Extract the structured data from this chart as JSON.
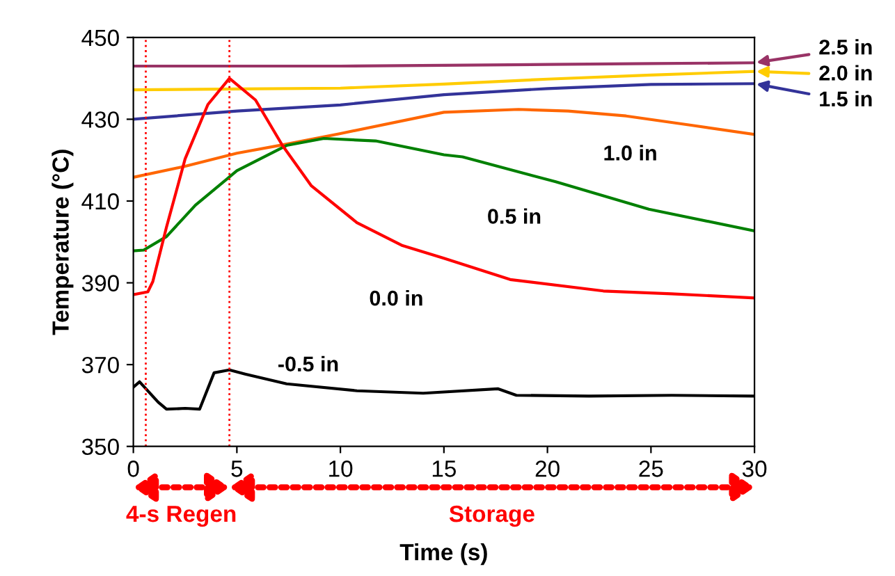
{
  "chart_data": {
    "type": "line",
    "xlabel": "Time (s)",
    "ylabel": "Temperature (°C)",
    "xlim": [
      0,
      30
    ],
    "ylim": [
      350,
      450
    ],
    "xticks": [
      0,
      5,
      10,
      15,
      20,
      25,
      30
    ],
    "yticks": [
      350,
      370,
      390,
      410,
      430,
      450
    ],
    "grid": false,
    "legend": "right",
    "marker": "none",
    "line_style": "solid",
    "series": [
      {
        "name": "2.5 in",
        "color": "#993366",
        "x": [
          0,
          5,
          10,
          15,
          20,
          25,
          30
        ],
        "values": [
          443,
          443,
          443,
          443.2,
          443.4,
          443.6,
          443.8
        ]
      },
      {
        "name": "2.0 in",
        "color": "#ffcc00",
        "x": [
          0,
          5,
          10,
          15,
          20,
          25,
          30
        ],
        "values": [
          437.2,
          437.4,
          437.6,
          438.6,
          439.8,
          440.8,
          441.7
        ]
      },
      {
        "name": "1.5 in",
        "color": "#333399",
        "x": [
          0,
          5,
          10,
          15,
          20,
          25,
          30
        ],
        "values": [
          430,
          432,
          433.5,
          436,
          437.5,
          438.5,
          438.7
        ]
      },
      {
        "name": "1.0 in",
        "color": "#ff6600",
        "x": [
          0,
          2.5,
          5,
          7.5,
          10,
          15,
          18.6,
          21,
          23.8,
          27,
          30
        ],
        "values": [
          415.8,
          418.5,
          421.7,
          424,
          426.5,
          431.7,
          432.4,
          432,
          430.8,
          428.5,
          426.3
        ]
      },
      {
        "name": "0.5 in",
        "color": "#008000",
        "x": [
          0,
          0.5,
          1.6,
          3,
          5,
          7.4,
          9.2,
          11.7,
          15,
          15.9,
          20.4,
          24.9,
          30
        ],
        "values": [
          397.8,
          398,
          401.3,
          409,
          417.4,
          423.6,
          425.3,
          424.7,
          421.3,
          420.8,
          414.7,
          408,
          402.7
        ]
      },
      {
        "name": "0.0 in",
        "color": "#ff0000",
        "x": [
          0,
          0.7,
          0.94,
          1.6,
          2.5,
          3.6,
          4.64,
          5.9,
          7.2,
          8.6,
          10.8,
          13,
          15,
          18.2,
          22.7,
          26,
          30
        ],
        "values": [
          387.1,
          387.8,
          390.3,
          403.6,
          420.3,
          433.6,
          440,
          434.7,
          423.6,
          413.7,
          404.7,
          399.1,
          396,
          390.8,
          388,
          387.3,
          386.3
        ]
      },
      {
        "name": "-0.5 in",
        "color": "#000000",
        "x": [
          0,
          0.3,
          1.2,
          1.6,
          2.5,
          3.2,
          3.9,
          4.64,
          5.4,
          7.4,
          10.8,
          14,
          17.6,
          18.5,
          22,
          26,
          30
        ],
        "values": [
          364.5,
          365.8,
          360.8,
          359.1,
          359.3,
          359.1,
          368,
          368.7,
          367.7,
          365.3,
          363.6,
          363,
          364.1,
          362.5,
          362.3,
          362.5,
          362.3
        ]
      }
    ],
    "ref_lines": [
      {
        "axis": "x",
        "value": 0.6,
        "color": "#ff0000",
        "line_style": "dotted"
      },
      {
        "axis": "x",
        "value": 4.64,
        "color": "#ff0000",
        "line_style": "dotted"
      }
    ],
    "annotations": [
      "4-s Regen",
      "Storage"
    ]
  }
}
